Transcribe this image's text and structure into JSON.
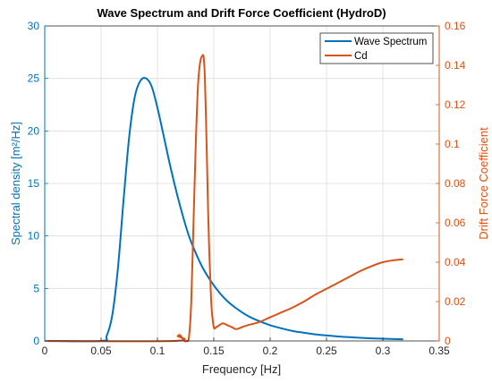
{
  "chart_data": {
    "type": "line",
    "title": "Wave Spectrum and Drift Force Coefficient (HydroD)",
    "xlabel": "Frequency [Hz]",
    "ylabel_left": "Spectral density [m²/Hz]",
    "ylabel_right": "Drift Force Coefficient",
    "xlim": [
      0,
      0.35
    ],
    "ylim_left": [
      0,
      30
    ],
    "ylim_right": [
      0,
      0.16
    ],
    "x_ticks": [
      "0",
      "0.05",
      "0.1",
      "0.15",
      "0.2",
      "0.25",
      "0.3",
      "0.35"
    ],
    "y_left_ticks": [
      "0",
      "5",
      "10",
      "15",
      "20",
      "25",
      "30"
    ],
    "y_right_ticks": [
      "0",
      "0.02",
      "0.04",
      "0.06",
      "0.08",
      "0.1",
      "0.12",
      "0.14",
      "0.16"
    ],
    "grid": true,
    "legend_position": "top-right",
    "colors": {
      "left_axis": "#0072BD",
      "right_axis": "#D95319"
    },
    "series": [
      {
        "name": "Wave Spectrum",
        "axis": "left",
        "color": "#0072BD",
        "x": [
          0.0,
          0.05,
          0.055,
          0.06,
          0.065,
          0.07,
          0.075,
          0.08,
          0.085,
          0.09,
          0.095,
          0.1,
          0.105,
          0.11,
          0.115,
          0.12,
          0.125,
          0.13,
          0.14,
          0.15,
          0.16,
          0.17,
          0.18,
          0.19,
          0.2,
          0.21,
          0.22,
          0.23,
          0.24,
          0.25,
          0.26,
          0.27,
          0.28,
          0.29,
          0.3,
          0.31,
          0.318
        ],
        "y": [
          0,
          0,
          0.5,
          2.5,
          7.0,
          13.5,
          19.5,
          23.3,
          24.8,
          25.0,
          24.2,
          22.2,
          19.8,
          17.3,
          15.0,
          12.9,
          11.0,
          9.4,
          7.0,
          5.3,
          4.0,
          3.1,
          2.4,
          1.9,
          1.5,
          1.2,
          0.95,
          0.78,
          0.63,
          0.52,
          0.43,
          0.36,
          0.3,
          0.25,
          0.21,
          0.18,
          0.16
        ]
      },
      {
        "name": "Cd",
        "axis": "right",
        "color": "#D95319",
        "x": [
          0.0,
          0.115,
          0.118,
          0.12,
          0.122,
          0.124,
          0.126,
          0.128,
          0.13,
          0.132,
          0.134,
          0.136,
          0.138,
          0.14,
          0.141,
          0.142,
          0.143,
          0.144,
          0.145,
          0.146,
          0.147,
          0.148,
          0.15,
          0.152,
          0.155,
          0.158,
          0.162,
          0.166,
          0.17,
          0.175,
          0.18,
          0.19,
          0.2,
          0.21,
          0.22,
          0.23,
          0.24,
          0.25,
          0.26,
          0.27,
          0.28,
          0.29,
          0.3,
          0.31,
          0.318
        ],
        "y": [
          0,
          0,
          0.0025,
          0.003,
          0.0015,
          0,
          0,
          0.002,
          0.02,
          0.06,
          0.1,
          0.13,
          0.142,
          0.145,
          0.144,
          0.135,
          0.115,
          0.09,
          0.065,
          0.045,
          0.03,
          0.017,
          0.007,
          0.007,
          0.008,
          0.009,
          0.008,
          0.007,
          0.006,
          0.007,
          0.008,
          0.0095,
          0.012,
          0.0145,
          0.017,
          0.02,
          0.0235,
          0.0265,
          0.0295,
          0.0325,
          0.0355,
          0.038,
          0.04,
          0.041,
          0.0415
        ]
      }
    ]
  }
}
